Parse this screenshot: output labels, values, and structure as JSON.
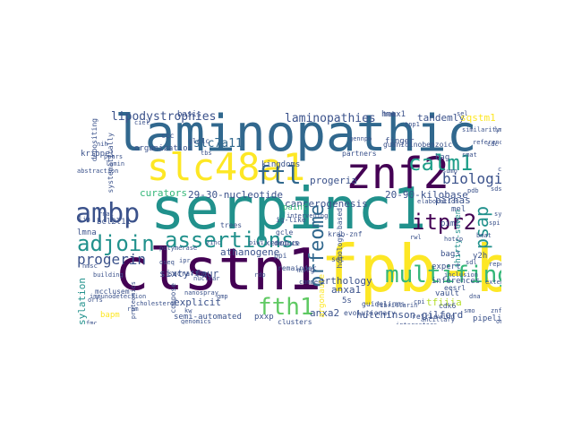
{
  "palette": {
    "dark_purple": "#440154",
    "indigo": "#3b528b",
    "steel_blue": "#31688e",
    "teal": "#21918c",
    "green": "#35b779",
    "light_green": "#5ec962",
    "yellow_green": "#b5de2b",
    "yellow": "#fde725"
  },
  "words": [
    {
      "text": "laminopathic",
      "color": "#31688e"
    },
    {
      "text": "serpinc1",
      "color": "#21918c"
    },
    {
      "text": "fpb-b",
      "color": "#fde725"
    },
    {
      "text": "clstn1",
      "color": "#440154"
    },
    {
      "text": "slc48a1",
      "color": "#fde725"
    },
    {
      "text": "znf2",
      "color": "#440154"
    },
    {
      "text": "ambp",
      "color": "#3b528b"
    },
    {
      "text": "calm1",
      "color": "#1f9e89"
    },
    {
      "text": "ftl",
      "color": "#31688e"
    },
    {
      "text": "adjoin",
      "color": "#21918c"
    },
    {
      "text": "assertions",
      "color": "#21918c"
    },
    {
      "text": "biologist",
      "color": "#3b528b"
    },
    {
      "text": "multifingered",
      "color": "#35b779"
    },
    {
      "text": "orfeome",
      "color": "#31688e"
    },
    {
      "text": "psap",
      "color": "#21918c"
    },
    {
      "text": "itpr2",
      "color": "#440154"
    },
    {
      "text": "miwi",
      "color": "#440154"
    },
    {
      "text": "fth1",
      "color": "#5ec962"
    },
    {
      "text": "progerin",
      "color": "#3b528b"
    },
    {
      "text": "lipodystrophies",
      "color": "#3b528b"
    },
    {
      "text": "laminopathies",
      "color": "#3b528b"
    },
    {
      "text": "slc7a11",
      "color": "#31688e"
    },
    {
      "text": "tandemly",
      "color": "#3b528b"
    },
    {
      "text": "sqstm1",
      "color": "#fde725"
    },
    {
      "text": "cancerogenesis",
      "color": "#3b528b"
    },
    {
      "text": "athanogene",
      "color": "#3b528b"
    },
    {
      "text": "sixty-four",
      "color": "#3b528b"
    },
    {
      "text": "29-30-nucleotide",
      "color": "#3b528b"
    },
    {
      "text": "20-90-kilobase",
      "color": "#3b528b"
    },
    {
      "text": "hutchinson-gilford",
      "color": "#3b528b"
    },
    {
      "text": "anxa1",
      "color": "#3b528b"
    },
    {
      "text": "anxa2",
      "color": "#3b528b"
    },
    {
      "text": "orthology",
      "color": "#3b528b"
    },
    {
      "text": "progeria",
      "color": "#3b528b"
    },
    {
      "text": "kingdoms",
      "color": "#3b528b"
    },
    {
      "text": "bcl2l11",
      "color": "#3b528b"
    },
    {
      "text": "lmna",
      "color": "#3b528b"
    },
    {
      "text": "curators",
      "color": "#35b779"
    },
    {
      "text": "paint",
      "color": "#35b779"
    },
    {
      "text": "pirnas",
      "color": "#3b528b"
    },
    {
      "text": "bag3",
      "color": "#3b528b"
    },
    {
      "text": "bag",
      "color": "#3b528b"
    },
    {
      "text": "pimi",
      "color": "#3b528b"
    },
    {
      "text": "mel",
      "color": "#3b528b"
    },
    {
      "text": "y2h",
      "color": "#3b528b"
    },
    {
      "text": "thirty-seven",
      "color": "#21918c"
    },
    {
      "text": "expert",
      "color": "#3b528b"
    },
    {
      "text": "inferences",
      "color": "#3b528b"
    },
    {
      "text": "tfiiia",
      "color": "#b5de2b"
    },
    {
      "text": "vault",
      "color": "#3b528b"
    },
    {
      "text": "pipeline",
      "color": "#3b528b"
    },
    {
      "text": "farnesylation",
      "color": "#21918c"
    },
    {
      "text": "explicit",
      "color": "#3b528b"
    },
    {
      "text": "pxxp",
      "color": "#3b528b"
    },
    {
      "text": "xenopus",
      "color": "#3b528b"
    },
    {
      "text": "semi-automated",
      "color": "#3b528b"
    },
    {
      "text": "5s",
      "color": "#3b528b"
    },
    {
      "text": "bapm",
      "color": "#fde725"
    },
    {
      "text": "argonaute",
      "color": "#fde725"
    },
    {
      "text": "hmox1",
      "color": "#3b528b"
    },
    {
      "text": "finger",
      "color": "#3b528b"
    },
    {
      "text": "basis",
      "color": "#3b528b"
    },
    {
      "text": "organization",
      "color": "#3b528b"
    },
    {
      "text": "krippel",
      "color": "#3b528b"
    },
    {
      "text": "depositing",
      "color": "#3b528b"
    },
    {
      "text": "systematically",
      "color": "#3b528b"
    },
    {
      "text": "glclc",
      "color": "#3b528b"
    },
    {
      "text": "ig-like",
      "color": "#3b528b"
    },
    {
      "text": "gcle",
      "color": "#3b528b"
    },
    {
      "text": "deduce",
      "color": "#3b528b"
    },
    {
      "text": "remainder",
      "color": "#3b528b"
    },
    {
      "text": "evolutionary",
      "color": "#3b528b"
    },
    {
      "text": "guidelines",
      "color": "#3b528b"
    },
    {
      "text": "retrieving",
      "color": "#3b528b"
    },
    {
      "text": "set",
      "color": "#3b528b"
    },
    {
      "text": "clusters",
      "color": "#3b528b"
    },
    {
      "text": "seek",
      "color": "#3b528b"
    },
    {
      "text": "eesrl",
      "color": "#3b528b"
    },
    {
      "text": "cdk6",
      "color": "#3b528b"
    },
    {
      "text": "krab-znf",
      "color": "#3b528b"
    },
    {
      "text": "partners",
      "color": "#3b528b"
    },
    {
      "text": "guanidinobenzoic",
      "color": "#3b528b"
    },
    {
      "text": "msfg",
      "color": "#3b528b"
    },
    {
      "text": "ppi",
      "color": "#3b528b"
    },
    {
      "text": "mcclusem",
      "color": "#3b528b"
    },
    {
      "text": "sacrafice",
      "color": "#3b528b"
    },
    {
      "text": "hek",
      "color": "#3b528b"
    },
    {
      "text": "ccc",
      "color": "#3b528b"
    },
    {
      "text": "cardiomyopathies",
      "color": "#3b528b"
    },
    {
      "text": "cholangiocarcinomas",
      "color": "#3b528b"
    },
    {
      "text": "interactors",
      "color": "#3b528b"
    },
    {
      "text": "homology-based",
      "color": "#3b528b"
    },
    {
      "text": "intervening",
      "color": "#3b528b"
    },
    {
      "text": "immunodetection",
      "color": "#3b528b"
    },
    {
      "text": "cholesterol",
      "color": "#3b528b"
    },
    {
      "text": "compose",
      "color": "#3b528b"
    },
    {
      "text": "fibrillarin",
      "color": "#3b528b"
    },
    {
      "text": "reference",
      "color": "#3b528b"
    },
    {
      "text": "smat",
      "color": "#3b528b"
    },
    {
      "text": "bmat",
      "color": "#3b528b"
    },
    {
      "text": "nmsc",
      "color": "#3b528b"
    },
    {
      "text": "gennpo",
      "color": "#3b528b"
    },
    {
      "text": "extent",
      "color": "#3b528b"
    },
    {
      "text": "trees",
      "color": "#3b528b"
    },
    {
      "text": "comment",
      "color": "#3b528b"
    },
    {
      "text": "rnai",
      "color": "#3b528b"
    },
    {
      "text": "inclusion",
      "color": "#3b528b"
    },
    {
      "text": "dna",
      "color": "#3b528b"
    },
    {
      "text": "zinc",
      "color": "#3b528b"
    },
    {
      "text": "hotsp",
      "color": "#3b528b"
    },
    {
      "text": "tpp1",
      "color": "#3b528b"
    },
    {
      "text": "cdc",
      "color": "#3b528b"
    },
    {
      "text": "proteomics",
      "color": "#3b528b"
    },
    {
      "text": "ancillary",
      "color": "#3b528b"
    },
    {
      "text": "building",
      "color": "#3b528b"
    },
    {
      "text": "nanospray",
      "color": "#3b528b"
    },
    {
      "text": "elaboration",
      "color": "#3b528b"
    },
    {
      "text": "repertoires",
      "color": "#3b528b"
    },
    {
      "text": "abstraction",
      "color": "#3b528b"
    },
    {
      "text": "orfs",
      "color": "#3b528b"
    },
    {
      "text": "similarity",
      "color": "#3b528b"
    },
    {
      "text": "lamin",
      "color": "#3b528b"
    },
    {
      "text": "lim",
      "color": "#3b528b"
    },
    {
      "text": "oseq",
      "color": "#3b528b"
    },
    {
      "text": "kw",
      "color": "#3b528b"
    },
    {
      "text": "smo",
      "color": "#3b528b"
    },
    {
      "text": "znfs",
      "color": "#3b528b"
    },
    {
      "text": "fmc",
      "color": "#3b528b"
    },
    {
      "text": "synaptic",
      "color": "#3b528b"
    },
    {
      "text": "nuclear",
      "color": "#3b528b"
    },
    {
      "text": "rwl",
      "color": "#3b528b"
    },
    {
      "text": "piwi",
      "color": "#3b528b"
    },
    {
      "text": "sdsc",
      "color": "#3b528b"
    },
    {
      "text": "rdp",
      "color": "#3b528b"
    },
    {
      "text": "nih",
      "color": "#3b528b"
    },
    {
      "text": "polymerase",
      "color": "#3b528b"
    },
    {
      "text": "sumo",
      "color": "#3b528b"
    },
    {
      "text": "spi",
      "color": "#3b528b"
    },
    {
      "text": "genomics",
      "color": "#3b528b"
    },
    {
      "text": "sdl",
      "color": "#3b528b"
    },
    {
      "text": "cpi",
      "color": "#3b528b"
    },
    {
      "text": "rpm",
      "color": "#3b528b"
    },
    {
      "text": "ppars",
      "color": "#3b528b"
    },
    {
      "text": "sel",
      "color": "#3b528b"
    },
    {
      "text": "ciel",
      "color": "#3b528b"
    },
    {
      "text": "lmnb",
      "color": "#3b528b"
    },
    {
      "text": "ipr",
      "color": "#3b528b"
    },
    {
      "text": "gmp",
      "color": "#3b528b"
    },
    {
      "text": "vcm",
      "color": "#3b528b"
    },
    {
      "text": "onl",
      "color": "#3b528b"
    },
    {
      "text": "cell",
      "color": "#3b528b"
    },
    {
      "text": "tbs",
      "color": "#3b528b"
    },
    {
      "text": "pdb",
      "color": "#3b528b"
    },
    {
      "text": "etc",
      "color": "#3b528b"
    }
  ]
}
